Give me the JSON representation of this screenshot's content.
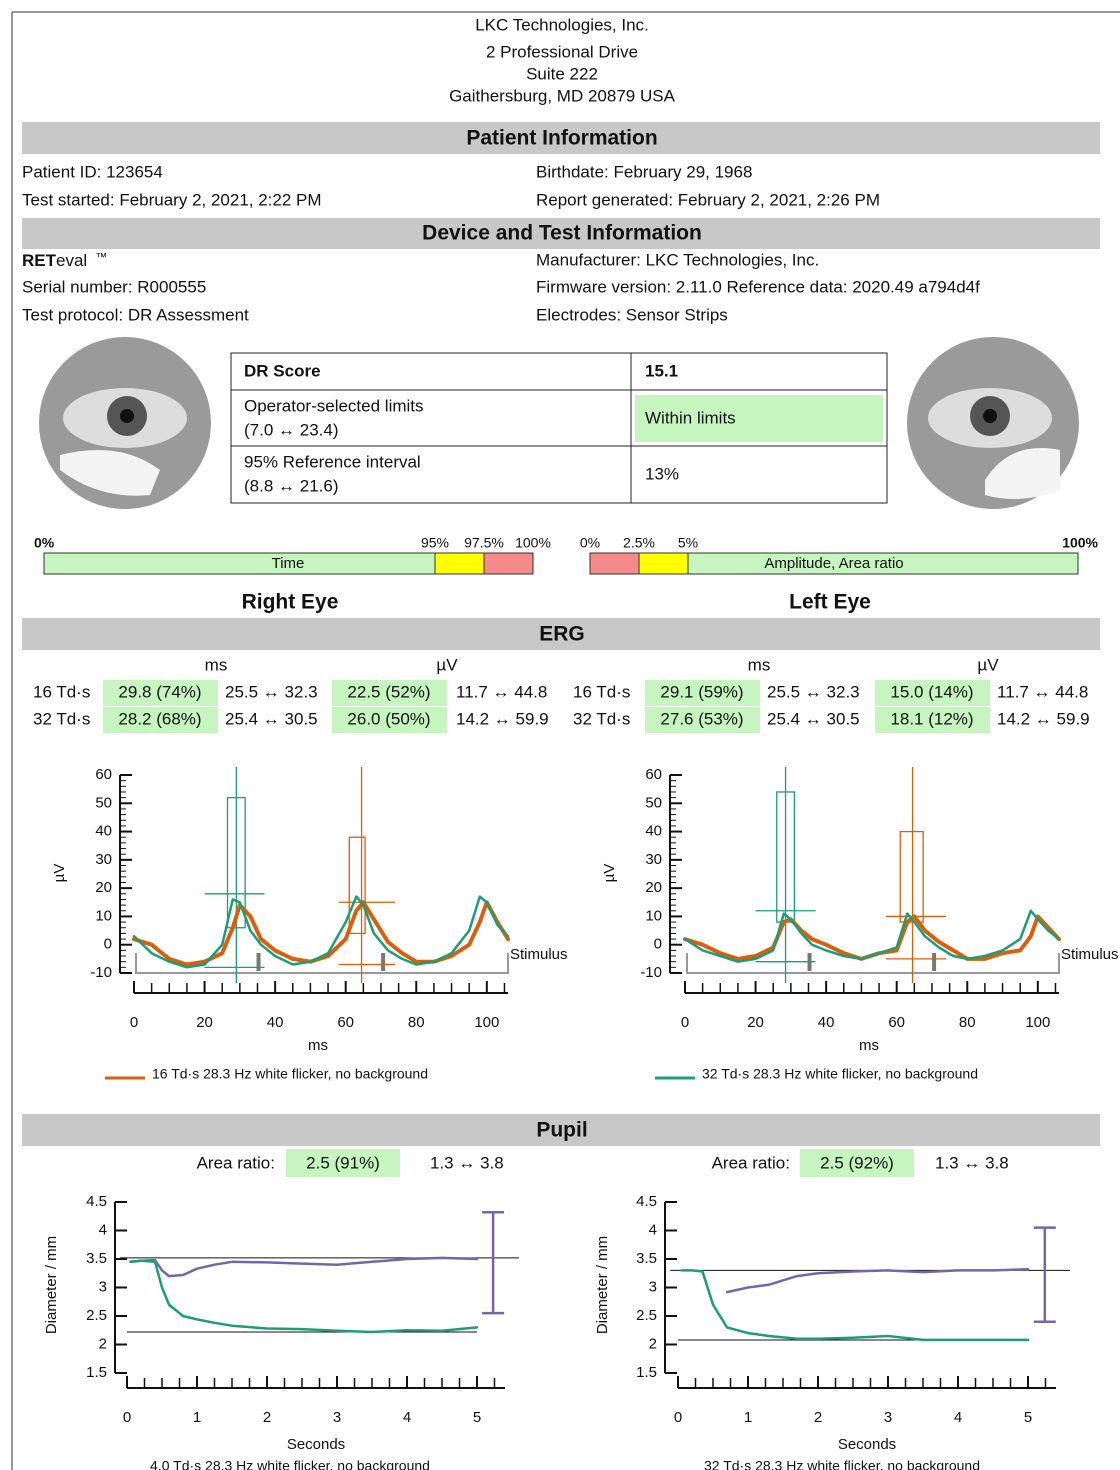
{
  "header": {
    "company": "LKC Technologies, Inc.",
    "address1": "2 Professional Drive",
    "address2": "Suite 222",
    "address3": "Gaithersburg, MD 20879 USA"
  },
  "patient": {
    "title": "Patient Information",
    "id": "Patient ID: 123654",
    "birthdate": "Birthdate: February 29, 1968",
    "started": "Test started: February 2, 2021, 2:22 PM",
    "generated": "Report generated: February 2, 2021, 2:26 PM"
  },
  "device": {
    "title": "Device and Test Information",
    "brand_bold": "RET",
    "brand_rest": "eval",
    "tm": "™",
    "serial": "Serial number: R000555",
    "protocol": "Test protocol: DR Assessment",
    "manufacturer": "Manufacturer: LKC Technologies, Inc.",
    "firmware": "Firmware version: 2.11.0 Reference data: 2020.49 a794d4f",
    "electrodes": "Electrodes: Sensor Strips"
  },
  "dr_table": {
    "score_label": "DR Score",
    "score": "15.1",
    "limits_label": "Operator-selected limits",
    "limits_range": "(7.0 ↔ 23.4)",
    "limits_result": "Within limits",
    "ref_label": "95% Reference interval",
    "ref_range": "(8.8 ↔ 21.6)",
    "ref_result": "13%"
  },
  "scales": {
    "time": {
      "label": "Time",
      "ticks": [
        "0%",
        "95%",
        "97.5%",
        "100%"
      ]
    },
    "amplitude": {
      "label": "Amplitude, Area ratio",
      "ticks": [
        "0%",
        "2.5%",
        "5%",
        "100%"
      ]
    }
  },
  "eyes": [
    "Right Eye",
    "Left Eye"
  ],
  "erg": {
    "title": "ERG",
    "units": [
      "ms",
      "µV",
      "ms",
      "µV"
    ],
    "right": [
      [
        "16 Td·s",
        "29.8 (74%)",
        "25.5 ↔ 32.3",
        "22.5 (52%)",
        "11.7 ↔ 44.8"
      ],
      [
        "32 Td·s",
        "28.2 (68%)",
        "25.4 ↔ 30.5",
        "26.0 (50%)",
        "14.2 ↔ 59.9"
      ]
    ],
    "left": [
      [
        "16 Td·s",
        "29.1 (59%)",
        "25.5 ↔ 32.3",
        "15.0 (14%)",
        "11.7 ↔ 44.8"
      ],
      [
        "32 Td·s",
        "27.6 (53%)",
        "25.4 ↔ 30.5",
        "18.1 (12%)",
        "14.2 ↔ 59.9"
      ]
    ]
  },
  "charts": [
    {
      "type": "line",
      "xlabel": "ms",
      "ylabel": "µV",
      "stimulus_label": "Stimulus",
      "xlim": [
        0,
        106
      ],
      "ylim": [
        -10,
        60
      ],
      "xticks": [
        0,
        20,
        40,
        60,
        80,
        100
      ],
      "yticks": [
        -10,
        0,
        10,
        20,
        30,
        40,
        50,
        60
      ],
      "x": [
        0,
        5,
        10,
        15,
        20,
        25,
        28,
        30,
        33,
        36,
        40,
        45,
        50,
        55,
        60,
        63,
        65,
        68,
        72,
        76,
        80,
        85,
        90,
        95,
        98,
        100,
        103,
        106
      ],
      "series": [
        {
          "name": "16 Td·s 28.3 Hz white flicker, no background",
          "color": "#d95f0e",
          "values": [
            2,
            0,
            -5,
            -7,
            -6,
            -3,
            6,
            14,
            10,
            2,
            -2,
            -5,
            -6,
            -4,
            2,
            12,
            15,
            9,
            1,
            -3,
            -6,
            -6,
            -4,
            0,
            8,
            15,
            8,
            2
          ]
        },
        {
          "color": "#1b9e77",
          "values": [
            3,
            -3,
            -6,
            -8,
            -7,
            0,
            16,
            15,
            5,
            0,
            -4,
            -7,
            -6,
            -3,
            8,
            17,
            14,
            4,
            -2,
            -5,
            -7,
            -6,
            -3,
            5,
            17,
            15,
            7,
            3
          ]
        }
      ],
      "markers": [
        {
          "color": "#1b9e77",
          "x0": 26.5,
          "x1": 31.5,
          "y0": 6,
          "y1": 52,
          "xc": 29,
          "yc": 18,
          "y_low": -8,
          "cx0": 20,
          "cx1": 37
        },
        {
          "color": "#d95f0e",
          "x0": 61,
          "x1": 65.5,
          "y0": 4,
          "y1": 38,
          "xc": 64.5,
          "yc": 15,
          "y_low": -7,
          "cx0": 58,
          "cx1": 74
        }
      ],
      "stimulus_marks": [
        35.3,
        70.6
      ]
    },
    {
      "type": "line",
      "xlabel": "ms",
      "ylabel": "µV",
      "stimulus_label": "Stimulus",
      "xlim": [
        0,
        106
      ],
      "ylim": [
        -10,
        60
      ],
      "xticks": [
        0,
        20,
        40,
        60,
        80,
        100
      ],
      "yticks": [
        -10,
        0,
        10,
        20,
        30,
        40,
        50,
        60
      ],
      "x": [
        0,
        5,
        10,
        15,
        20,
        25,
        28,
        30,
        33,
        36,
        40,
        45,
        50,
        55,
        60,
        63,
        65,
        68,
        72,
        76,
        80,
        85,
        90,
        95,
        98,
        100,
        103,
        106
      ],
      "series": [
        {
          "color": "#d95f0e",
          "values": [
            2,
            0,
            -3,
            -5,
            -4,
            -1,
            8,
            9,
            5,
            2,
            0,
            -3,
            -5,
            -3,
            -2,
            8,
            10,
            5,
            1,
            -2,
            -5,
            -5,
            -3,
            -2,
            3,
            10,
            6,
            2
          ]
        },
        {
          "name": "32 Td·s 28.3 Hz white flicker, no background",
          "color": "#1b9e77",
          "values": [
            2,
            -2,
            -4,
            -6,
            -5,
            -2,
            11,
            9,
            4,
            0,
            -2,
            -4,
            -5,
            -3,
            -1,
            11,
            8,
            3,
            -1,
            -4,
            -5,
            -4,
            -2,
            2,
            12,
            9,
            5,
            2
          ]
        }
      ],
      "markers": [
        {
          "color": "#1b9e77",
          "x0": 26,
          "x1": 31,
          "y0": 8,
          "y1": 54,
          "xc": 28.5,
          "yc": 12,
          "y_low": -6,
          "cx0": 20,
          "cx1": 37
        },
        {
          "color": "#d95f0e",
          "x0": 61,
          "x1": 67.5,
          "y0": 8,
          "y1": 40,
          "xc": 64.5,
          "yc": 10,
          "y_low": -5,
          "cx0": 57,
          "cx1": 74
        }
      ],
      "stimulus_marks": [
        35.3,
        70.6
      ]
    },
    {
      "type": "line",
      "xlabel": "Seconds",
      "ylabel": "Diameter / mm",
      "caption": "4.0 Td·s 28.3 Hz white flicker, no background",
      "xlim": [
        0,
        5.4
      ],
      "ylim": [
        1.5,
        4.5
      ],
      "xticks": [
        0,
        1,
        2,
        3,
        4,
        5
      ],
      "yticks": [
        1.5,
        2,
        2.5,
        3,
        3.5,
        4,
        4.5
      ],
      "x": [
        0.05,
        0.2,
        0.4,
        0.5,
        0.6,
        0.8,
        1,
        1.25,
        1.5,
        2,
        2.5,
        3,
        3.5,
        4,
        4.5,
        5
      ],
      "series": [
        {
          "color": "#7566a8",
          "values": [
            3.45,
            3.47,
            3.48,
            3.3,
            3.2,
            3.22,
            3.33,
            3.4,
            3.45,
            3.44,
            3.42,
            3.4,
            3.45,
            3.5,
            3.52,
            3.5
          ]
        },
        {
          "color": "#1b9e77",
          "values": [
            3.45,
            3.47,
            3.45,
            3.0,
            2.7,
            2.5,
            2.44,
            2.38,
            2.33,
            2.28,
            2.27,
            2.24,
            2.22,
            2.25,
            2.24,
            2.3
          ]
        }
      ],
      "ref_lines": [
        {
          "y": 3.52,
          "x0": -0.1,
          "x1": 5.6
        },
        {
          "y": 2.22,
          "x0": 0,
          "x1": 5
        }
      ],
      "error_bar": {
        "color": "#7566a8",
        "x": 5.23,
        "y0": 2.55,
        "y1": 4.32
      }
    },
    {
      "type": "line",
      "xlabel": "Seconds",
      "ylabel": "Diameter / mm",
      "caption": "32 Td·s 28.3 Hz white flicker, no background",
      "xlim": [
        0,
        5.4
      ],
      "ylim": [
        1.5,
        4.5
      ],
      "xticks": [
        0,
        1,
        2,
        3,
        4,
        5
      ],
      "yticks": [
        1.5,
        2,
        2.5,
        3,
        3.5,
        4,
        4.5
      ],
      "x": [
        0.05,
        0.2,
        0.35,
        0.5,
        0.7,
        1,
        1.3,
        1.7,
        2,
        2.5,
        3,
        3.5,
        4,
        4.5,
        5
      ],
      "series": [
        {
          "color": "#7566a8",
          "values": [
            null,
            null,
            null,
            null,
            2.92,
            3.0,
            3.05,
            3.2,
            3.25,
            3.28,
            3.3,
            3.27,
            3.3,
            3.3,
            3.32
          ]
        },
        {
          "color": "#1b9e77",
          "values": [
            3.3,
            3.3,
            3.28,
            2.7,
            2.3,
            2.2,
            2.15,
            2.1,
            2.1,
            2.12,
            2.15,
            2.08,
            2.08,
            2.08,
            2.08
          ]
        }
      ],
      "ref_lines": [
        {
          "y": 3.3,
          "x0": -0.11,
          "x1": 5.6
        },
        {
          "y": 2.08,
          "x0": 0,
          "x1": 5
        }
      ],
      "error_bar": {
        "color": "#7566a8",
        "x": 5.24,
        "y0": 2.4,
        "y1": 4.05
      }
    }
  ],
  "pupil": {
    "title": "Pupil",
    "right": {
      "label": "Area ratio:",
      "value": "2.5 (91%)",
      "range": "1.3 ↔ 3.8"
    },
    "left": {
      "label": "Area ratio:",
      "value": "2.5 (92%)",
      "range": "1.3 ↔ 3.8"
    }
  }
}
